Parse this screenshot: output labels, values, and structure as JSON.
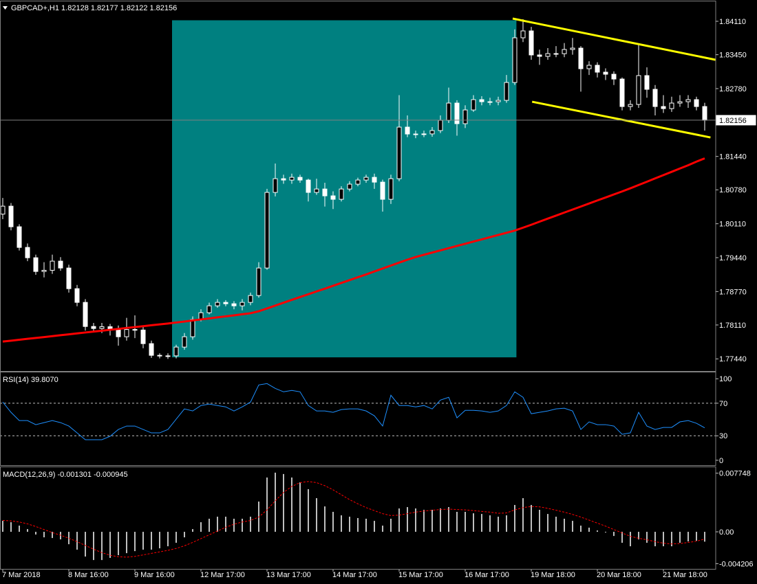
{
  "chart_data": [
    {
      "type": "candlestick",
      "title": "GBPCAD+,H1  1.82128 1.82177 1.82122 1.82156",
      "categories": [
        "7 Mar 2018",
        null,
        null,
        null,
        null,
        null,
        null,
        null,
        "8 Mar 16:00",
        null,
        null,
        null,
        null,
        null,
        null,
        null,
        "9 Mar 16:00",
        null,
        null,
        null,
        null,
        null,
        null,
        null,
        "12 Mar 17:00",
        null,
        null,
        null,
        null,
        null,
        null,
        null,
        "13 Mar 17:00",
        null,
        null,
        null,
        null,
        null,
        null,
        null,
        "14 Mar 17:00",
        null,
        null,
        null,
        null,
        null,
        null,
        null,
        "15 Mar 17:00",
        null,
        null,
        null,
        null,
        null,
        null,
        null,
        "16 Mar 17:00",
        null,
        null,
        null,
        null,
        null,
        null,
        null,
        "19 Mar 18:00",
        null,
        null,
        null,
        null,
        null,
        null,
        null,
        "20 Mar 18:00",
        null,
        null,
        null,
        null,
        null,
        null,
        null,
        "21 Mar 18:00",
        null,
        null,
        null,
        null,
        null
      ],
      "open": [
        1.803,
        1.80457,
        1.8005,
        1.79642,
        1.79438,
        1.79167,
        1.7919,
        1.79371,
        1.79235,
        1.78827,
        1.78556,
        1.7808,
        1.7804,
        1.78075,
        1.78013,
        1.77877,
        1.7802,
        1.7801,
        1.77741,
        1.7751,
        1.77497,
        1.775,
        1.77673,
        1.77877,
        1.78216,
        1.78352,
        1.78488,
        1.78556,
        1.78529,
        1.78488,
        1.78556,
        1.78692,
        1.79235,
        1.80729,
        1.81,
        1.80973,
        1.81027,
        1.80973,
        1.80729,
        1.80796,
        1.80661,
        1.80593,
        1.80796,
        1.80892,
        1.80973,
        1.81027,
        1.80932,
        1.80593,
        1.81,
        1.82019,
        1.81883,
        1.8188,
        1.81885,
        1.81951,
        1.82154,
        1.82494,
        1.82087,
        1.82358,
        1.82562,
        1.82521,
        1.8252,
        1.82548,
        1.82901,
        1.83784,
        1.8392,
        1.83445,
        1.83417,
        1.83472,
        1.8347,
        1.83553,
        1.8358,
        1.83173,
        1.83241,
        1.83105,
        1.83064,
        1.82969,
        1.82426,
        1.82467,
        1.83037,
        1.82766,
        1.82426,
        1.82385,
        1.82494,
        1.82521,
        1.82562,
        1.82426
      ],
      "high": [
        1.8062,
        1.8052,
        1.801,
        1.7972,
        1.795,
        1.7935,
        1.795,
        1.7945,
        1.793,
        1.789,
        1.7862,
        1.7815,
        1.7815,
        1.7813,
        1.781,
        1.7825,
        1.783,
        1.7808,
        1.778,
        1.7755,
        1.7755,
        1.7772,
        1.7795,
        1.7828,
        1.7842,
        1.7855,
        1.7862,
        1.786,
        1.7858,
        1.7862,
        1.7875,
        1.7935,
        1.808,
        1.813,
        1.8108,
        1.811,
        1.8108,
        1.81,
        1.81,
        1.8092,
        1.8075,
        1.8085,
        1.8095,
        1.8102,
        1.8108,
        1.811,
        1.8098,
        1.8108,
        1.8265,
        1.8225,
        1.8195,
        1.8195,
        1.8202,
        1.8225,
        1.828,
        1.8255,
        1.8245,
        1.8265,
        1.8263,
        1.826,
        1.8262,
        1.8305,
        1.8395,
        1.8415,
        1.84,
        1.8355,
        1.8358,
        1.8362,
        1.8368,
        1.8378,
        1.8362,
        1.8332,
        1.833,
        1.8318,
        1.8312,
        1.83,
        1.8255,
        1.8365,
        1.832,
        1.8285,
        1.8265,
        1.8262,
        1.8265,
        1.8265,
        1.8262,
        1.825
      ],
      "low": [
        1.802,
        1.7998,
        1.7958,
        1.7937,
        1.791,
        1.7905,
        1.7912,
        1.7918,
        1.7875,
        1.7848,
        1.78,
        1.7798,
        1.7795,
        1.779,
        1.777,
        1.778,
        1.7785,
        1.7765,
        1.7746,
        1.7745,
        1.7744,
        1.7745,
        1.7762,
        1.7782,
        1.7818,
        1.7832,
        1.7845,
        1.7848,
        1.7842,
        1.784,
        1.785,
        1.7865,
        1.792,
        1.8065,
        1.809,
        1.809,
        1.8092,
        1.8055,
        1.8068,
        1.8045,
        1.804,
        1.8055,
        1.8075,
        1.8085,
        1.8092,
        1.808,
        1.8035,
        1.805,
        1.8095,
        1.8182,
        1.818,
        1.8182,
        1.8183,
        1.819,
        1.821,
        1.8185,
        1.82,
        1.8232,
        1.8245,
        1.8245,
        1.8245,
        1.825,
        1.8285,
        1.837,
        1.8335,
        1.8325,
        1.8335,
        1.834,
        1.834,
        1.8345,
        1.8272,
        1.8305,
        1.83,
        1.8295,
        1.8285,
        1.8235,
        1.8235,
        1.824,
        1.826,
        1.8225,
        1.823,
        1.8232,
        1.8242,
        1.824,
        1.8235,
        1.8195
      ],
      "close": [
        1.80457,
        1.8005,
        1.79642,
        1.79438,
        1.79167,
        1.7919,
        1.79371,
        1.79235,
        1.78827,
        1.78556,
        1.7808,
        1.7804,
        1.78075,
        1.78013,
        1.77877,
        1.7802,
        1.7801,
        1.77741,
        1.7751,
        1.77497,
        1.775,
        1.77673,
        1.77877,
        1.78216,
        1.78352,
        1.78488,
        1.78556,
        1.78529,
        1.78488,
        1.78556,
        1.78692,
        1.79235,
        1.80729,
        1.81,
        1.80973,
        1.81027,
        1.80973,
        1.80729,
        1.80796,
        1.80661,
        1.80593,
        1.80796,
        1.80892,
        1.80973,
        1.81027,
        1.80932,
        1.80593,
        1.81,
        1.82019,
        1.81883,
        1.8188,
        1.81885,
        1.81951,
        1.82154,
        1.82494,
        1.82087,
        1.82358,
        1.82562,
        1.82521,
        1.8252,
        1.82548,
        1.82901,
        1.83784,
        1.8392,
        1.83445,
        1.83417,
        1.83472,
        1.8347,
        1.83553,
        1.8358,
        1.83173,
        1.83241,
        1.83105,
        1.83064,
        1.82969,
        1.82426,
        1.82467,
        1.83037,
        1.82766,
        1.82426,
        1.82385,
        1.82494,
        1.82521,
        1.82562,
        1.82426,
        1.82156
      ],
      "candle_color": "#ffffff",
      "moving_average": {
        "color": "#ff0000",
        "values": [
          1.77782,
          1.77799,
          1.77817,
          1.77836,
          1.77854,
          1.77871,
          1.77889,
          1.77907,
          1.77924,
          1.77943,
          1.77961,
          1.77979,
          1.77996,
          1.78014,
          1.78032,
          1.78051,
          1.78068,
          1.78086,
          1.78104,
          1.78121,
          1.78139,
          1.78158,
          1.78178,
          1.78199,
          1.78219,
          1.78239,
          1.7826,
          1.7828,
          1.783,
          1.78321,
          1.78341,
          1.78381,
          1.78436,
          1.78492,
          1.7855,
          1.78606,
          1.78662,
          1.78716,
          1.78773,
          1.78827,
          1.78884,
          1.7894,
          1.78996,
          1.79053,
          1.79108,
          1.79167,
          1.79225,
          1.79284,
          1.79342,
          1.79399,
          1.79453,
          1.79497,
          1.7954,
          1.79584,
          1.79627,
          1.79671,
          1.79714,
          1.79758,
          1.79801,
          1.79845,
          1.79888,
          1.79931,
          1.79975,
          1.80032,
          1.8009,
          1.80151,
          1.80211,
          1.80271,
          1.80331,
          1.8039,
          1.8045,
          1.8051,
          1.8057,
          1.80629,
          1.80689,
          1.80748,
          1.8081,
          1.80875,
          1.8094,
          1.81006,
          1.81071,
          1.81136,
          1.81201,
          1.81266,
          1.81337,
          1.81402
        ]
      },
      "rectangle": {
        "x": [
          20.5,
          62.2
        ],
        "y": [
          1.7747,
          1.8413
        ],
        "color": "#008080"
      },
      "trendlines": [
        {
          "x": [
            61.75,
            86.3
          ],
          "y": [
            1.84164,
            1.8335
          ],
          "color": "#ffff00"
        },
        {
          "x": [
            64.1,
            85.7
          ],
          "y": [
            1.82521,
            1.81815
          ],
          "color": "#ffff00"
        }
      ],
      "price_line": 1.82156,
      "ylim": [
        1.772,
        1.8449
      ],
      "yticks": [
        {
          "value": 1.8411,
          "label": "1.84110"
        },
        {
          "value": 1.8345,
          "label": "1.83450"
        },
        {
          "value": 1.8278,
          "label": "1.82780"
        },
        {
          "value": 1.8144,
          "label": "1.81440"
        },
        {
          "value": 1.8078,
          "label": "1.80780"
        },
        {
          "value": 1.8011,
          "label": "1.80110"
        },
        {
          "value": 1.7944,
          "label": "1.79440"
        },
        {
          "value": 1.7877,
          "label": "1.78770"
        },
        {
          "value": 1.7811,
          "label": "1.78110"
        },
        {
          "value": 1.7744,
          "label": "1.77440"
        }
      ]
    },
    {
      "type": "line",
      "title": "RSI(14) 39.8070",
      "color": "#1e90ff",
      "values": [
        71.4,
        58.8,
        48.7,
        48.7,
        43.7,
        46.2,
        48.7,
        46.2,
        42.0,
        33.6,
        25.2,
        25.2,
        25.2,
        29.4,
        37.8,
        42.0,
        42.0,
        37.8,
        33.6,
        33.6,
        37.8,
        50.4,
        63.0,
        60.5,
        67.2,
        68.9,
        67.2,
        65.5,
        60.5,
        65.5,
        71.4,
        92.4,
        94.1,
        88.2,
        84.0,
        85.7,
        84.0,
        67.2,
        60.5,
        60.5,
        58.8,
        62.2,
        63.0,
        63.0,
        60.5,
        54.6,
        42.0,
        79.8,
        67.2,
        67.2,
        65.5,
        67.2,
        63.0,
        73.9,
        77.3,
        52.1,
        61.3,
        61.3,
        60.5,
        58.8,
        60.5,
        67.2,
        84.0,
        77.3,
        57.1,
        58.8,
        60.5,
        63.0,
        63.9,
        60.5,
        37.8,
        47.1,
        43.7,
        43.7,
        42.0,
        31.9,
        33.6,
        58.8,
        42.0,
        37.8,
        40.3,
        40.3,
        47.1,
        48.7,
        45.4,
        39.807
      ],
      "levels": [
        70,
        30
      ],
      "ylim": [
        -6,
        107
      ],
      "yticks": [
        100,
        70,
        30,
        0
      ]
    },
    {
      "type": "macd",
      "title": "MACD(12,26,9) -0.001301 -0.000945",
      "series": [
        {
          "type": "bar",
          "color": "#c0c0c0",
          "values": [
            0.00145,
            0.00127,
            0.00082,
            0.00036,
            -0.00036,
            -0.00073,
            -0.00082,
            -0.001,
            -0.00164,
            -0.00236,
            -0.00327,
            -0.00373,
            -0.00373,
            -0.00345,
            -0.00309,
            -0.00282,
            -0.00255,
            -0.00236,
            -0.00236,
            -0.00218,
            -0.00191,
            -0.00145,
            -0.00073,
            0.00036,
            0.00127,
            0.00173,
            0.002,
            0.002,
            0.00173,
            0.00173,
            0.002,
            0.004,
            0.00718,
            0.00782,
            0.00764,
            0.00718,
            0.00655,
            0.00564,
            0.00445,
            0.00336,
            0.00264,
            0.00218,
            0.002,
            0.00182,
            0.00173,
            0.00145,
            0.00082,
            0.00173,
            0.00309,
            0.00327,
            0.00309,
            0.00291,
            0.00291,
            0.00309,
            0.00327,
            0.00264,
            0.00264,
            0.00245,
            0.00236,
            0.00218,
            0.002,
            0.00218,
            0.00355,
            0.00445,
            0.00355,
            0.00291,
            0.00236,
            0.002,
            0.00173,
            0.00145,
            0.00082,
            0.00055,
            0.00018,
            -9e-05,
            -0.00055,
            -0.00145,
            -0.00191,
            -0.001,
            -0.00145,
            -0.00191,
            -0.00191,
            -0.00191,
            -0.00145,
            -0.00127,
            -0.00118,
            -0.001301
          ]
        },
        {
          "type": "line",
          "color": "#ff0000",
          "values": [
            0.0015,
            0.00145,
            0.0013,
            0.00105,
            0.0007,
            0.0003,
            -0.0001,
            -0.00045,
            -0.00085,
            -0.0013,
            -0.0018,
            -0.0023,
            -0.00275,
            -0.0031,
            -0.0033,
            -0.00335,
            -0.00325,
            -0.00305,
            -0.00285,
            -0.00265,
            -0.00245,
            -0.0022,
            -0.00185,
            -0.0014,
            -0.0009,
            -0.0004,
            0.0001,
            0.0006,
            0.001,
            0.0013,
            0.0015,
            0.00195,
            0.0029,
            0.0041,
            0.0052,
            0.006,
            0.0065,
            0.00665,
            0.0065,
            0.0061,
            0.00555,
            0.0049,
            0.00425,
            0.0037,
            0.0032,
            0.0028,
            0.0024,
            0.00215,
            0.0022,
            0.0024,
            0.0026,
            0.00275,
            0.00285,
            0.00295,
            0.003,
            0.00295,
            0.0029,
            0.0028,
            0.0027,
            0.0026,
            0.00245,
            0.0025,
            0.0029,
            0.0032,
            0.00335,
            0.0033,
            0.0031,
            0.00285,
            0.0026,
            0.0023,
            0.00195,
            0.00155,
            0.00115,
            0.00075,
            0.0003,
            -0.00015,
            -0.0006,
            -0.00085,
            -0.00105,
            -0.0013,
            -0.0015,
            -0.0016,
            -0.00155,
            -0.0014,
            -0.00125,
            -0.000945
          ]
        }
      ],
      "ylim": [
        -0.0049,
        0.00845
      ],
      "yticks": [
        0.007748,
        {
          "value": 0,
          "label": "0.00"
        },
        -0.004206
      ]
    }
  ]
}
